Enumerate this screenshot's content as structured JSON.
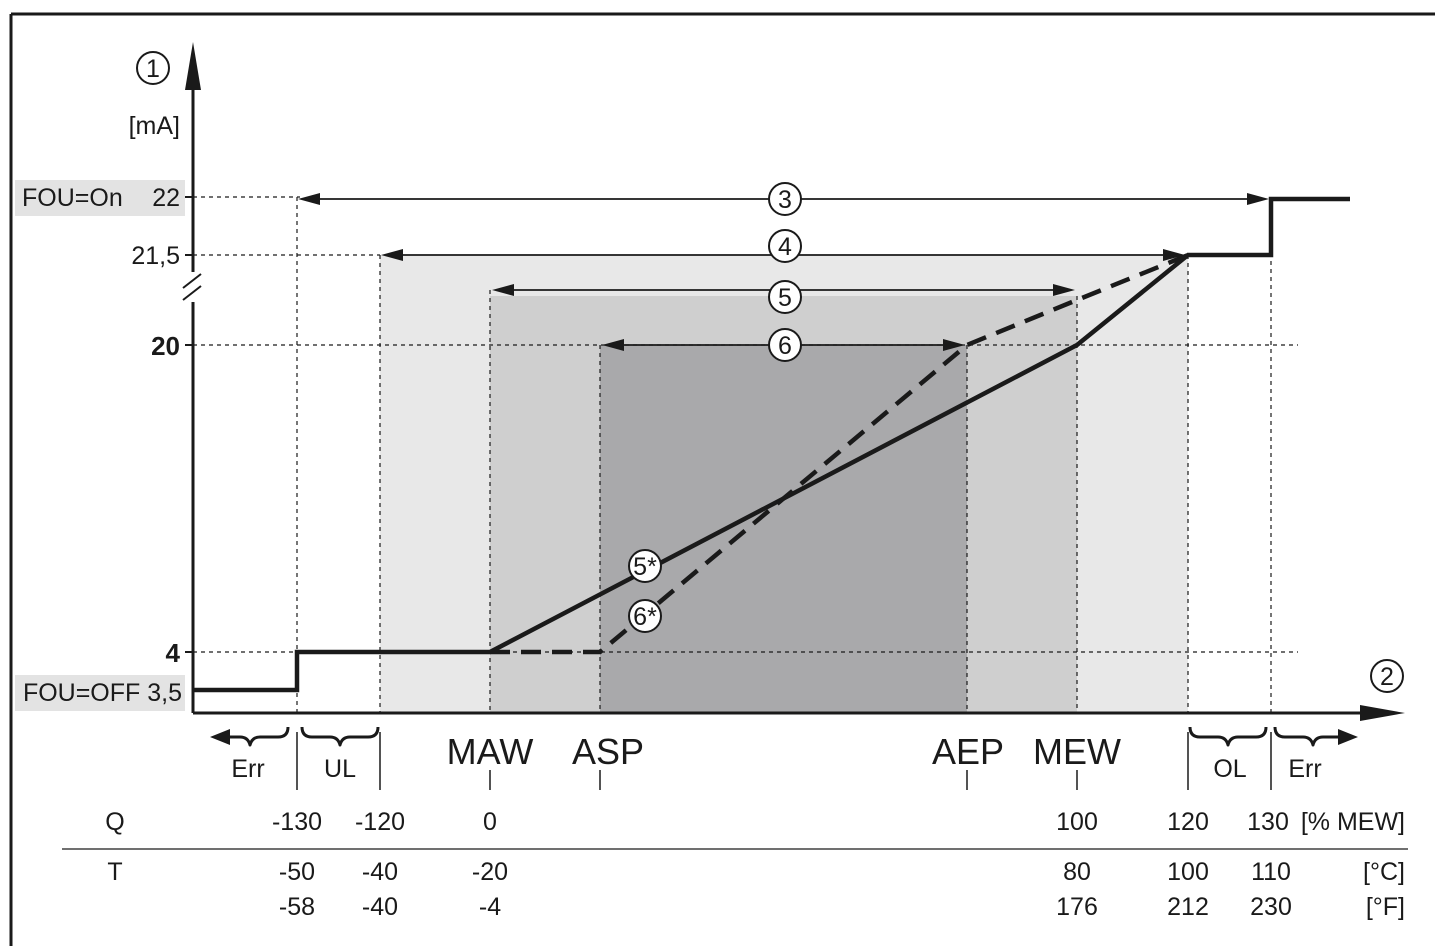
{
  "y_axis": {
    "callout": "1",
    "unit": "[mA]"
  },
  "x_axis": {
    "callout": "2"
  },
  "y_labels": {
    "fou_on": "FOU=On",
    "v22": "22",
    "v21_5": "21,5",
    "v20": "20",
    "v4": "4",
    "fou_off": "FOU=OFF 3,5"
  },
  "ranges": [
    {
      "callout": "3"
    },
    {
      "callout": "4"
    },
    {
      "callout": "5"
    },
    {
      "callout": "6"
    }
  ],
  "curve_callouts": {
    "solid": "5*",
    "dashed": "6*"
  },
  "markers": {
    "maw": "MAW",
    "asp": "ASP",
    "aep": "AEP",
    "mew": "MEW"
  },
  "zones": {
    "err_left": "Err",
    "ul": "UL",
    "ol": "OL",
    "err_right": "Err"
  },
  "table": {
    "q_label": "Q",
    "t_label": "T",
    "q_values": [
      "-130",
      "-120",
      "0",
      "100",
      "120",
      "130"
    ],
    "q_unit": "[% MEW]",
    "c_values": [
      "-50",
      "-40",
      "-20",
      "80",
      "100",
      "110"
    ],
    "c_unit": "[°C]",
    "f_values": [
      "-58",
      "-40",
      "-4",
      "176",
      "212",
      "230"
    ],
    "f_unit": "[°F]"
  },
  "colors": {
    "band_light": "#e8e8e8",
    "band_mid": "#cfcfcf",
    "band_dark": "#a9a9ab",
    "label_bg": "#e3e3e3",
    "line": "#1a1a1a"
  }
}
